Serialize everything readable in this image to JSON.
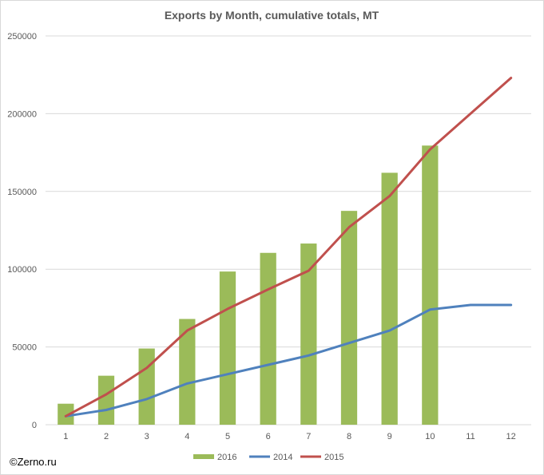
{
  "chart_data": {
    "type": "bar+line",
    "title": "Exports by Month, cumulative totals, MT",
    "xlabel": "",
    "ylabel": "",
    "categories": [
      "1",
      "2",
      "3",
      "4",
      "5",
      "6",
      "7",
      "8",
      "9",
      "10",
      "11",
      "12"
    ],
    "ylim": [
      0,
      250000
    ],
    "yticks": [
      "0",
      "50000",
      "100000",
      "150000",
      "200000",
      "250000"
    ],
    "grid": true,
    "legend_position": "bottom",
    "series": [
      {
        "name": "2016",
        "kind": "bar",
        "color": "#9bbb59",
        "values": [
          13500,
          31500,
          49000,
          68000,
          98500,
          110500,
          116500,
          137500,
          162000,
          179500,
          null,
          null
        ]
      },
      {
        "name": "2014",
        "kind": "line",
        "color": "#4f81bd",
        "values": [
          5500,
          9500,
          16500,
          26500,
          32500,
          38500,
          44500,
          52500,
          60500,
          74000,
          77000,
          77000
        ]
      },
      {
        "name": "2015",
        "kind": "line",
        "color": "#c0504d",
        "values": [
          5500,
          19500,
          36500,
          60500,
          74500,
          87000,
          99000,
          127000,
          147000,
          177000,
          200000,
          223000
        ]
      }
    ]
  },
  "credit": "©Zerno.ru"
}
